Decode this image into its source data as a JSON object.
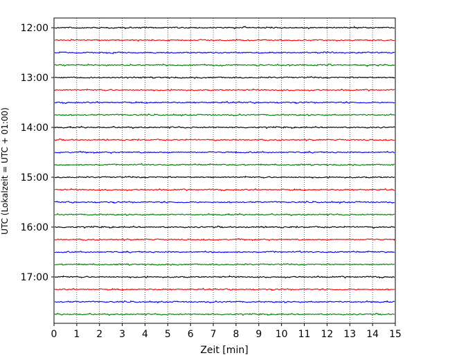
{
  "chart_data": {
    "type": "line",
    "title": "",
    "xlabel": "Zeit  [min]",
    "ylabel": "UTC (Lokalzeit = UTC + 01:00)",
    "xlim": [
      0,
      15
    ],
    "x_ticks": [
      "0",
      "1",
      "2",
      "3",
      "4",
      "5",
      "6",
      "7",
      "8",
      "9",
      "10",
      "11",
      "12",
      "13",
      "14",
      "15"
    ],
    "y_ticks": [
      "12:00",
      "13:00",
      "14:00",
      "15:00",
      "16:00",
      "17:00"
    ],
    "grid": "vertical dotted at each minute",
    "trace_interval_min": 15,
    "trace_start": "12:00",
    "trace_end": "17:45",
    "trace_count": 24,
    "series_colors": [
      "#000000",
      "#ff0000",
      "#0000ff",
      "#008000"
    ]
  }
}
